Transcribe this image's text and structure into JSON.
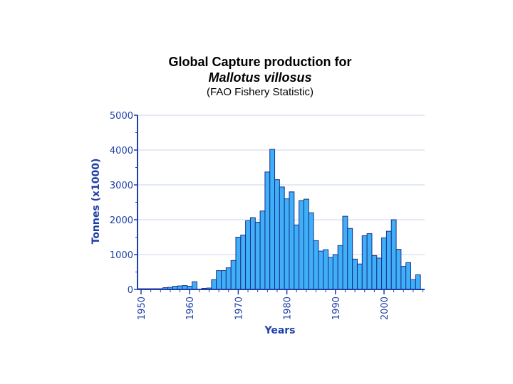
{
  "chart_data": {
    "type": "bar",
    "title": "Global Capture production for",
    "subtitle_species": "Mallotus villosus",
    "subtitle_source": "(FAO Fishery Statistic)",
    "xlabel": "Years",
    "ylabel": "Tonnes (x1000)",
    "ylim": [
      0,
      5000
    ],
    "y_ticks": [
      "0",
      "1000",
      "2000",
      "3000",
      "4000",
      "5000"
    ],
    "x_ticks": [
      "1950",
      "1960",
      "1970",
      "1980",
      "1990",
      "2000"
    ],
    "grid": true,
    "bar_color": "#3fb0f7",
    "x": [
      1950,
      1951,
      1952,
      1953,
      1954,
      1955,
      1956,
      1957,
      1958,
      1959,
      1960,
      1961,
      1962,
      1963,
      1964,
      1965,
      1966,
      1967,
      1968,
      1969,
      1970,
      1971,
      1972,
      1973,
      1974,
      1975,
      1976,
      1977,
      1978,
      1979,
      1980,
      1981,
      1982,
      1983,
      1984,
      1985,
      1986,
      1987,
      1988,
      1989,
      1990,
      1991,
      1992,
      1993,
      1994,
      1995,
      1996,
      1997,
      1998,
      1999,
      2000,
      2001,
      2002,
      2003,
      2004,
      2005,
      2006,
      2007
    ],
    "values": [
      20,
      20,
      20,
      20,
      20,
      50,
      60,
      90,
      100,
      110,
      90,
      220,
      0,
      30,
      40,
      280,
      540,
      540,
      620,
      830,
      1500,
      1560,
      1970,
      2060,
      1930,
      2250,
      3370,
      4020,
      3150,
      2940,
      2600,
      2800,
      1850,
      2550,
      2590,
      2200,
      1400,
      1100,
      1140,
      920,
      1000,
      1260,
      2100,
      1750,
      870,
      730,
      1540,
      1600,
      970,
      900,
      1480,
      1670,
      2000,
      1150,
      660,
      770,
      280,
      420
    ]
  }
}
